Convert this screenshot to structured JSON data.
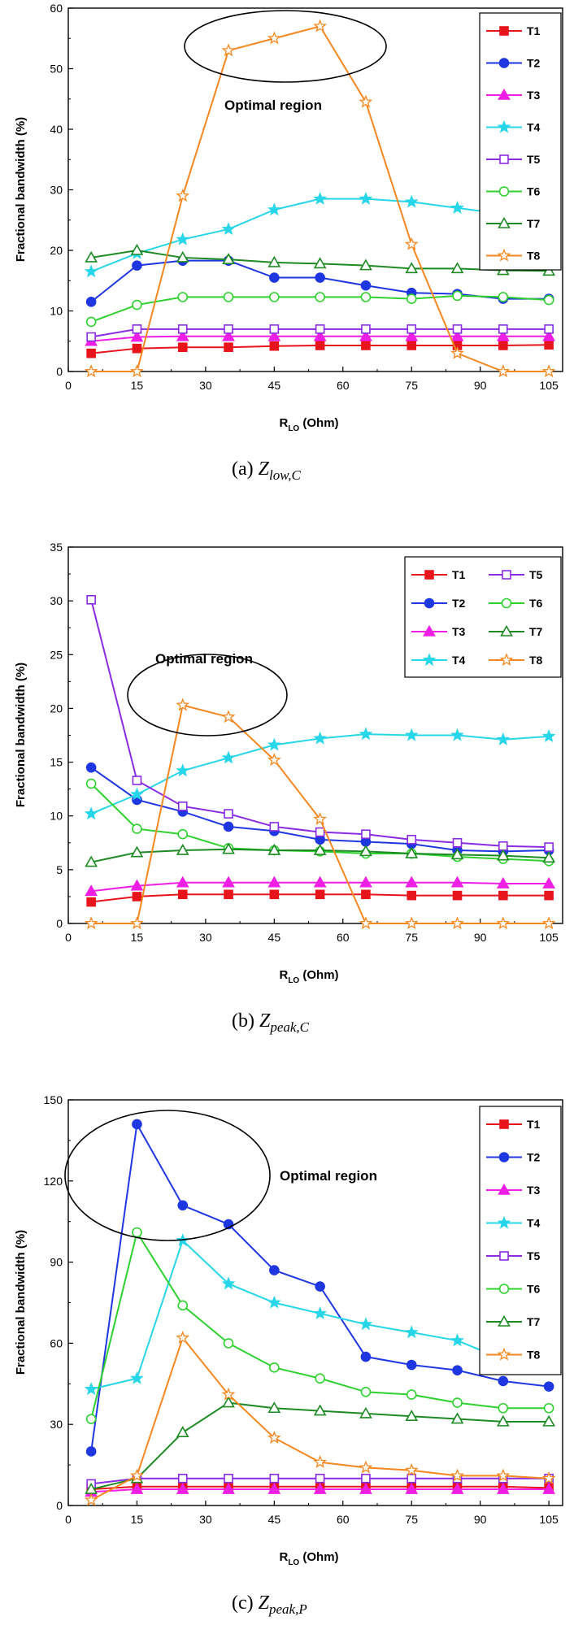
{
  "chart_data": [
    {
      "type": "line",
      "caption_prefix": "(a)",
      "caption_main": "Z",
      "caption_sub": "low,C",
      "xlabel": "R",
      "xlabel_sub": "LO",
      "xlabel_suffix": " (Ohm)",
      "ylabel": "Fractional bandwidth (%)",
      "xlim": [
        0,
        108
      ],
      "ylim": [
        0,
        60
      ],
      "xticks": [
        0,
        15,
        30,
        45,
        60,
        75,
        90,
        105
      ],
      "yticks": [
        0,
        10,
        20,
        30,
        40,
        50,
        60
      ],
      "x": [
        5,
        15,
        25,
        35,
        45,
        55,
        65,
        75,
        85,
        95,
        105
      ],
      "annotation": "Optimal region",
      "legend_position": "top-right",
      "series": [
        {
          "name": "T1",
          "color": "#e8141b",
          "marker": "square-filled",
          "values": [
            3,
            3.8,
            4,
            4,
            4.2,
            4.3,
            4.3,
            4.3,
            4.3,
            4.3,
            4.4
          ]
        },
        {
          "name": "T2",
          "color": "#1f37e0",
          "marker": "circle-filled",
          "values": [
            11.5,
            17.5,
            18.3,
            18.3,
            15.5,
            15.5,
            14.2,
            13,
            12.8,
            12,
            12
          ]
        },
        {
          "name": "T3",
          "color": "#ee1ee4",
          "marker": "triangle-filled",
          "values": [
            5,
            5.7,
            5.8,
            5.8,
            5.8,
            5.8,
            5.8,
            5.8,
            5.8,
            5.8,
            5.8
          ]
        },
        {
          "name": "T4",
          "color": "#27d6e8",
          "marker": "star-filled",
          "values": [
            16.5,
            19.5,
            21.8,
            23.5,
            26.7,
            28.5,
            28.5,
            28,
            27,
            26,
            25.5
          ]
        },
        {
          "name": "T5",
          "color": "#8a2be2",
          "marker": "square-open",
          "values": [
            5.7,
            7,
            7,
            7,
            7,
            7,
            7,
            7,
            7,
            7,
            7
          ]
        },
        {
          "name": "T6",
          "color": "#2fd12f",
          "marker": "circle-open",
          "values": [
            8.2,
            11,
            12.3,
            12.3,
            12.3,
            12.3,
            12.3,
            12,
            12.5,
            12.3,
            11.8
          ]
        },
        {
          "name": "T7",
          "color": "#1e8a23",
          "marker": "triangle-open",
          "values": [
            18.8,
            20,
            18.8,
            18.5,
            18,
            17.8,
            17.5,
            17,
            17,
            16.7,
            16.6
          ]
        },
        {
          "name": "T8",
          "color": "#f5871f",
          "marker": "star-open",
          "values": [
            0,
            0,
            29,
            53,
            55,
            57,
            44.5,
            21,
            3,
            0,
            0
          ]
        }
      ]
    },
    {
      "type": "line",
      "caption_prefix": "(b)",
      "caption_main": "Z",
      "caption_sub": "peak,C",
      "xlabel": "R",
      "xlabel_sub": "LO",
      "xlabel_suffix": " (Ohm)",
      "ylabel": "Fractional bandwidth (%)",
      "xlim": [
        0,
        108
      ],
      "ylim": [
        0,
        35
      ],
      "xticks": [
        0,
        15,
        30,
        45,
        60,
        75,
        90,
        105
      ],
      "yticks": [
        0,
        5,
        10,
        15,
        20,
        25,
        30,
        35
      ],
      "x": [
        5,
        15,
        25,
        35,
        45,
        55,
        65,
        75,
        85,
        95,
        105
      ],
      "annotation": "Optimal region",
      "legend_position": "top-right",
      "series": [
        {
          "name": "T1",
          "color": "#e8141b",
          "marker": "square-filled",
          "values": [
            2,
            2.5,
            2.7,
            2.7,
            2.7,
            2.7,
            2.7,
            2.6,
            2.6,
            2.6,
            2.6
          ]
        },
        {
          "name": "T2",
          "color": "#1f37e0",
          "marker": "circle-filled",
          "values": [
            14.5,
            11.5,
            10.4,
            9,
            8.6,
            7.8,
            7.6,
            7.4,
            6.8,
            6.7,
            6.8
          ]
        },
        {
          "name": "T3",
          "color": "#ee1ee4",
          "marker": "triangle-filled",
          "values": [
            3,
            3.5,
            3.8,
            3.8,
            3.8,
            3.8,
            3.8,
            3.8,
            3.8,
            3.7,
            3.7
          ]
        },
        {
          "name": "T4",
          "color": "#27d6e8",
          "marker": "star-filled",
          "values": [
            10.2,
            12,
            14.2,
            15.4,
            16.6,
            17.2,
            17.6,
            17.5,
            17.5,
            17.1,
            17.4
          ]
        },
        {
          "name": "T5",
          "color": "#8a2be2",
          "marker": "square-open",
          "values": [
            30.1,
            13.3,
            10.9,
            10.2,
            9,
            8.5,
            8.3,
            7.8,
            7.5,
            7.2,
            7.1
          ]
        },
        {
          "name": "T6",
          "color": "#2fd12f",
          "marker": "circle-open",
          "values": [
            13,
            8.8,
            8.3,
            7,
            6.8,
            6.7,
            6.5,
            6.5,
            6.2,
            6,
            5.8
          ]
        },
        {
          "name": "T7",
          "color": "#1e8a23",
          "marker": "triangle-open",
          "values": [
            5.7,
            6.6,
            6.8,
            6.9,
            6.8,
            6.8,
            6.7,
            6.5,
            6.4,
            6.3,
            6.1
          ]
        },
        {
          "name": "T8",
          "color": "#f5871f",
          "marker": "star-open",
          "values": [
            0,
            0,
            20.3,
            19.2,
            15.2,
            9.7,
            0,
            0,
            0,
            0,
            0
          ]
        }
      ]
    },
    {
      "type": "line",
      "caption_prefix": "(c)",
      "caption_main": "Z",
      "caption_sub": "peak,P",
      "xlabel": "R",
      "xlabel_sub": "LO",
      "xlabel_suffix": " (Ohm)",
      "ylabel": "Fractional bandwidth (%)",
      "xlim": [
        0,
        108
      ],
      "ylim": [
        0,
        150
      ],
      "xticks": [
        0,
        15,
        30,
        45,
        60,
        75,
        90,
        105
      ],
      "yticks": [
        0,
        30,
        60,
        90,
        120,
        150
      ],
      "x": [
        5,
        15,
        25,
        35,
        45,
        55,
        65,
        75,
        85,
        95,
        105
      ],
      "annotation": "Optimal region",
      "legend_position": "top-right",
      "series": [
        {
          "name": "T1",
          "color": "#e8141b",
          "marker": "square-filled",
          "values": [
            6,
            7,
            7,
            7,
            7,
            7,
            7,
            7,
            7,
            7,
            6.5
          ]
        },
        {
          "name": "T2",
          "color": "#1f37e0",
          "marker": "circle-filled",
          "values": [
            20,
            141,
            111,
            104,
            87,
            81,
            55,
            52,
            50,
            46,
            44
          ]
        },
        {
          "name": "T3",
          "color": "#ee1ee4",
          "marker": "triangle-filled",
          "values": [
            5,
            6,
            6,
            6,
            6,
            6,
            6,
            6,
            6,
            6,
            6
          ]
        },
        {
          "name": "T4",
          "color": "#27d6e8",
          "marker": "star-filled",
          "values": [
            43,
            47,
            98,
            82,
            75,
            71,
            67,
            64,
            61,
            54,
            52
          ]
        },
        {
          "name": "T5",
          "color": "#8a2be2",
          "marker": "square-open",
          "values": [
            8,
            10,
            10,
            10,
            10,
            10,
            10,
            10,
            10,
            10,
            10
          ]
        },
        {
          "name": "T6",
          "color": "#2fd12f",
          "marker": "circle-open",
          "values": [
            32,
            101,
            74,
            60,
            51,
            47,
            42,
            41,
            38,
            36,
            36
          ]
        },
        {
          "name": "T7",
          "color": "#1e8a23",
          "marker": "triangle-open",
          "values": [
            6,
            10,
            27,
            38,
            36,
            35,
            34,
            33,
            32,
            31,
            31
          ]
        },
        {
          "name": "T8",
          "color": "#f5871f",
          "marker": "star-open",
          "values": [
            2,
            11,
            62,
            41,
            25,
            16,
            14,
            13,
            11,
            11,
            10
          ]
        }
      ]
    }
  ]
}
